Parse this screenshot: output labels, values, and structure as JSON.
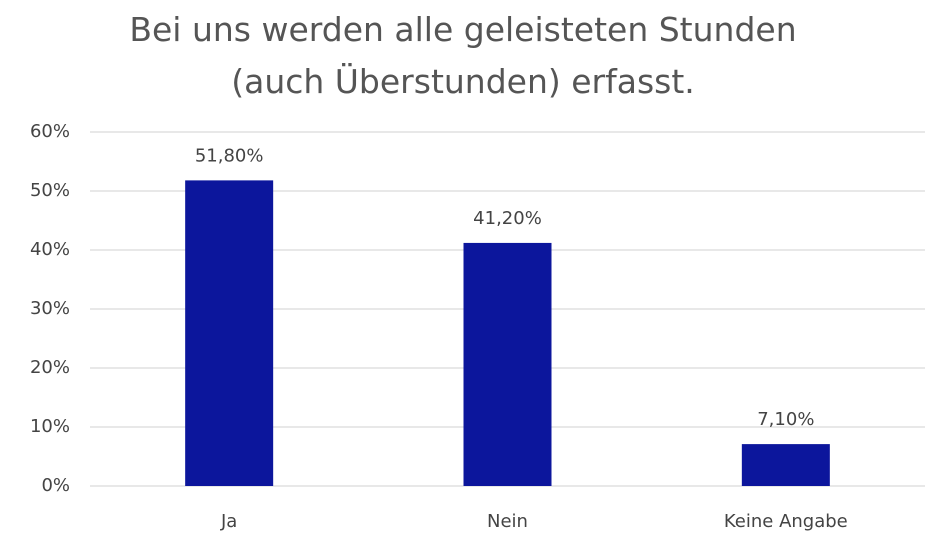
{
  "chart_data": {
    "type": "bar",
    "title": "Bei uns werden alle geleisteten Stunden (auch Überstunden) erfasst.",
    "categories": [
      "Ja",
      "Nein",
      "Keine Angabe"
    ],
    "values": [
      51.8,
      41.2,
      7.1
    ],
    "value_labels": [
      "51,80%",
      "41,20%",
      "7,10%"
    ],
    "color": "#0c169c",
    "ylim": [
      0,
      60
    ],
    "yticks": [
      {
        "value": 0,
        "label": "0%"
      },
      {
        "value": 10,
        "label": "10%"
      },
      {
        "value": 20,
        "label": "20%"
      },
      {
        "value": 30,
        "label": "30%"
      },
      {
        "value": 40,
        "label": "40%"
      },
      {
        "value": 50,
        "label": "50%"
      },
      {
        "value": 60,
        "label": "60%"
      }
    ],
    "grid": true
  }
}
